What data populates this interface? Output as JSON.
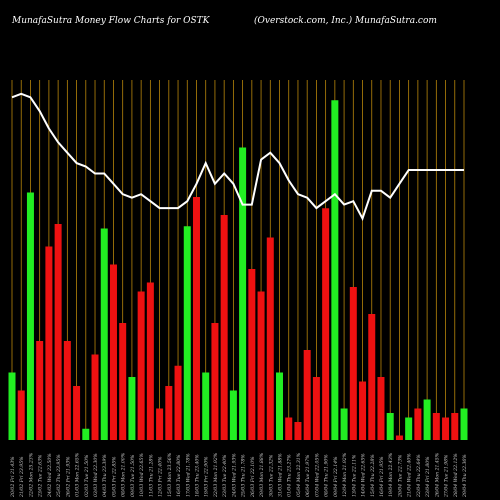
{
  "header": {
    "title_left": "MunafaSutra  Money Flow  Charts for OSTK",
    "title_right": "(Overstock.com,  Inc.) MunafaSutra.com"
  },
  "colors": {
    "background": "#000000",
    "grid_line": "#b8860b",
    "price_line": "#ffffff",
    "bar_up": "#22ee22",
    "bar_down": "#ee1111"
  },
  "chart_data": {
    "type": "bar",
    "title": "Money Flow Charts for OSTK",
    "x_tick_labels": [
      "20/02 Fri 21.43%",
      "21/02 Fri 23.95%",
      "22/02 Mon 25.23%",
      "23/02 Tue 22.63%",
      "24/02 Wed 22.50%",
      "25/02 Thu 23.95%",
      "26/02 Fri 21.93%",
      "01/03 Mon 22.65%",
      "02/03 Tue 21.50%",
      "03/03 Wed 22.30%",
      "04/03 Thu 23.39%",
      "05/03 Fri 22.85%",
      "08/03 Mon 21.00%",
      "09/03 Tue 21.50%",
      "10/03 Wed 22.65%",
      "11/03 Thu 21.28%",
      "12/03 Fri 22.40%",
      "15/03 Mon 23.56%",
      "16/03 Tue 22.80%",
      "17/03 Wed 21.78%",
      "18/03 Thu 23.40%",
      "19/03 Fri 22.90%",
      "22/03 Mon 21.92%",
      "23/03 Tue 22.40%",
      "24/03 Wed 21.93%",
      "25/03 Thu 21.78%",
      "26/03 Fri 22.10%",
      "29/03 Mon 21.88%",
      "30/03 Tue 22.32%",
      "31/03 Wed 21.88%",
      "01/04 Thu 23.27%",
      "05/04 Mon 22.31%",
      "06/04 Tue 21.97%",
      "07/04 Wed 22.05%",
      "08/04 Thu 21.90%",
      "09/04 Fri 22.14%",
      "12/04 Mon 21.92%",
      "13/04 Tue 22.11%",
      "14/04 Wed 22.65%",
      "15/04 Thu 22.28%",
      "16/04 Fri 21.95%",
      "19/04 Mon 22.43%",
      "20/04 Tue 22.73%",
      "21/04 Wed 22.40%",
      "22/04 Thu 22.64%",
      "23/04 Fri 21.80%",
      "26/04 Mon 21.45%",
      "27/04 Tue 21.98%",
      "28/04 Wed 22.12%",
      "29/04 Thu 22.36%"
    ],
    "bar_colors": [
      "green",
      "red",
      "green",
      "red",
      "red",
      "red",
      "red",
      "red",
      "green",
      "red",
      "green",
      "red",
      "red",
      "green",
      "red",
      "red",
      "red",
      "red",
      "red",
      "green",
      "red",
      "green",
      "red",
      "red",
      "green",
      "green",
      "red",
      "red",
      "red",
      "green",
      "red",
      "red",
      "red",
      "red",
      "red",
      "green",
      "green",
      "red",
      "red",
      "red",
      "red",
      "green",
      "red",
      "green",
      "red",
      "green",
      "red",
      "red",
      "red",
      "green"
    ],
    "bar_values": [
      30,
      22,
      110,
      44,
      86,
      96,
      44,
      24,
      5,
      38,
      94,
      78,
      52,
      28,
      66,
      70,
      14,
      24,
      33,
      95,
      108,
      30,
      52,
      100,
      22,
      130,
      76,
      66,
      90,
      30,
      10,
      8,
      40,
      28,
      103,
      151,
      14,
      68,
      26,
      56,
      28,
      12,
      2,
      10,
      14,
      18,
      12,
      10,
      12,
      14
    ],
    "price": [
      117,
      118,
      117,
      113,
      108,
      104,
      101,
      98,
      97,
      95,
      95,
      92,
      89,
      88,
      89,
      87,
      85,
      85,
      85,
      87,
      92,
      98,
      92,
      95,
      92,
      86,
      86,
      99,
      101,
      98,
      93,
      89,
      88,
      85,
      87,
      89,
      86,
      87,
      82,
      90,
      90,
      88,
      92,
      96,
      96,
      96,
      96,
      96,
      96,
      96
    ],
    "price_scale": [
      70,
      122
    ],
    "bars_max": 160,
    "grid": true
  }
}
